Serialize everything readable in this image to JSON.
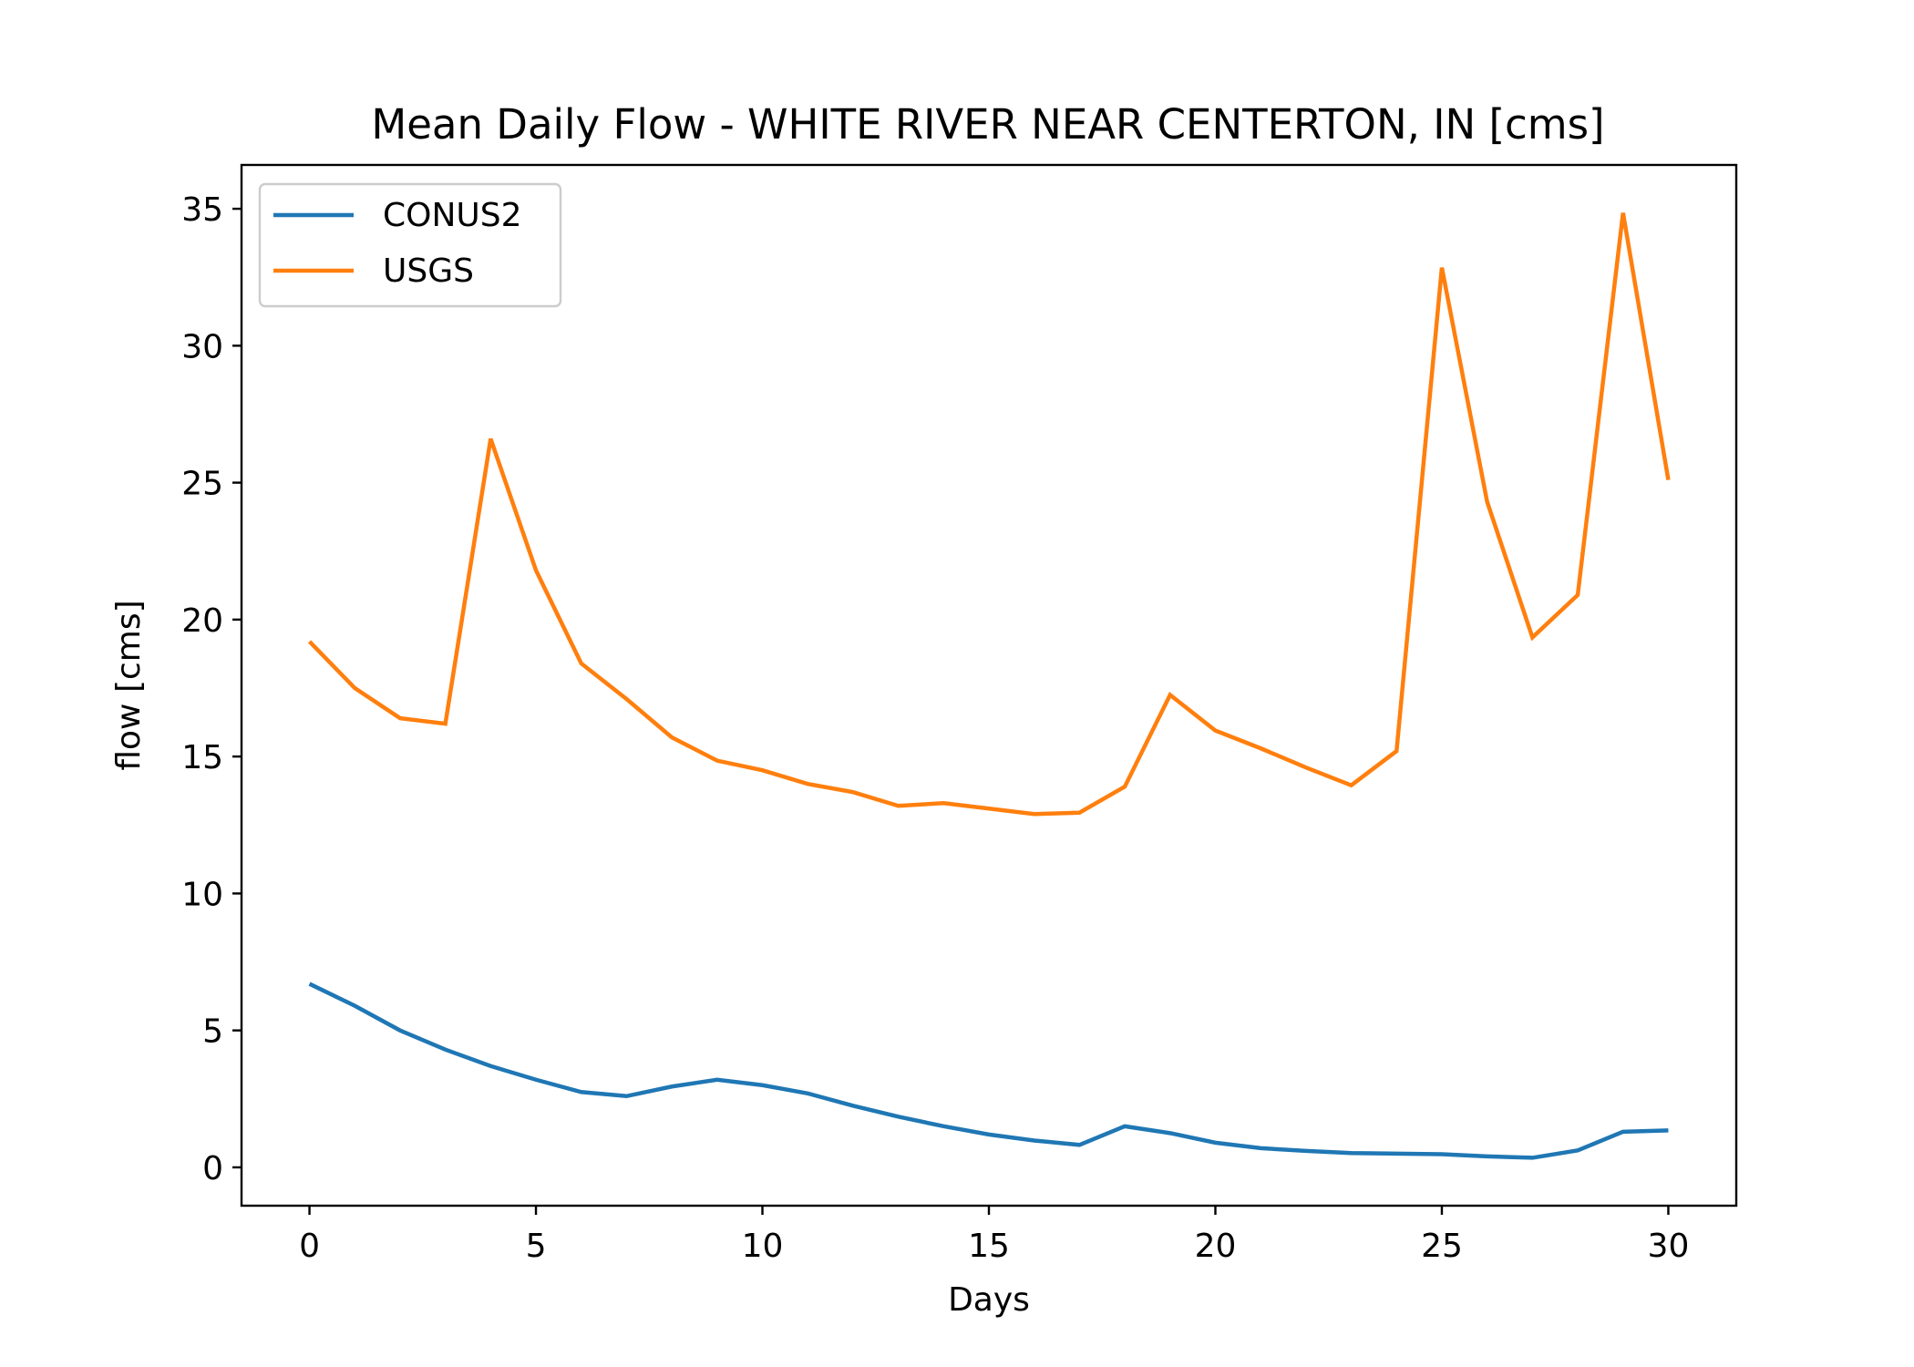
{
  "chart_data": {
    "type": "line",
    "title": "Mean Daily Flow - WHITE RIVER NEAR CENTERTON, IN [cms]",
    "xlabel": "Days",
    "ylabel": "flow [cms]",
    "xlim": [
      -1.5,
      31.5
    ],
    "ylim": [
      -1.4,
      36.6
    ],
    "xticks": [
      0,
      5,
      10,
      15,
      20,
      25,
      30
    ],
    "yticks": [
      0,
      5,
      10,
      15,
      20,
      25,
      30,
      35
    ],
    "grid": false,
    "legend": "upper left",
    "x": [
      0,
      1,
      2,
      3,
      4,
      5,
      6,
      7,
      8,
      9,
      10,
      11,
      12,
      13,
      14,
      15,
      16,
      17,
      18,
      19,
      20,
      21,
      22,
      23,
      24,
      25,
      26,
      27,
      28,
      29,
      30
    ],
    "series": [
      {
        "name": "CONUS2",
        "color": "#1f77b4",
        "values": [
          6.7,
          5.9,
          5.0,
          4.3,
          3.7,
          3.2,
          2.75,
          2.6,
          2.95,
          3.2,
          3.0,
          2.7,
          2.25,
          1.85,
          1.5,
          1.2,
          0.98,
          0.82,
          1.5,
          1.25,
          0.9,
          0.7,
          0.6,
          0.52,
          0.5,
          0.48,
          0.4,
          0.35,
          0.62,
          1.3,
          1.35
        ]
      },
      {
        "name": "USGS",
        "color": "#ff7f0e",
        "values": [
          19.2,
          17.5,
          16.4,
          16.2,
          26.6,
          21.8,
          18.4,
          17.1,
          15.7,
          14.85,
          14.5,
          14.0,
          13.7,
          13.2,
          13.3,
          13.1,
          12.9,
          12.95,
          13.9,
          17.25,
          15.95,
          15.3,
          14.6,
          13.95,
          15.2,
          32.85,
          24.3,
          19.35,
          20.9,
          34.85,
          25.1
        ]
      }
    ]
  }
}
